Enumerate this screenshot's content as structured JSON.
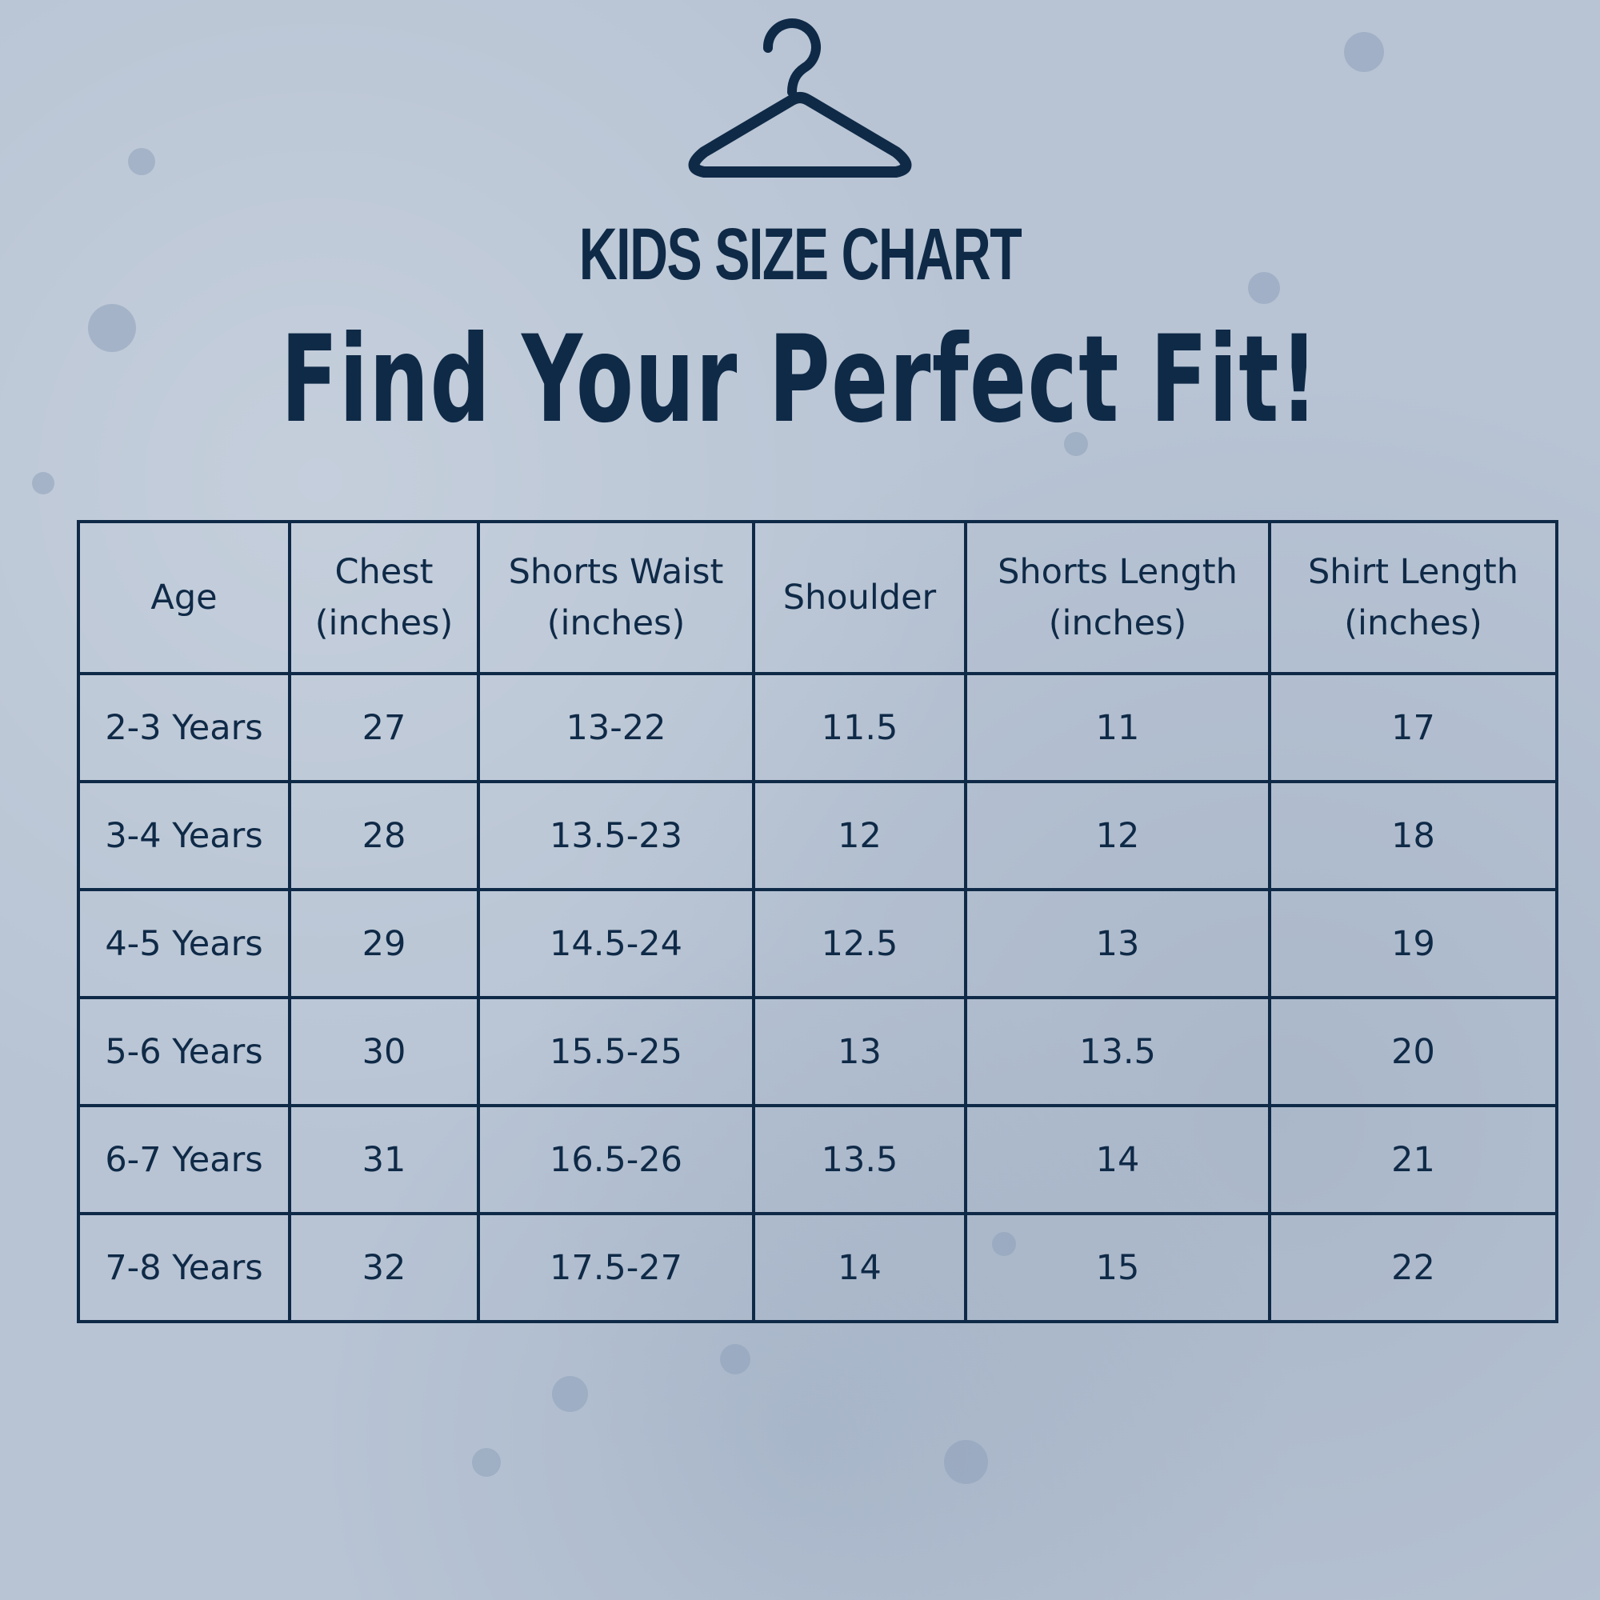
{
  "header": {
    "hanger_icon": "hanger-icon",
    "subtitle": "KIDS SIZE CHART",
    "title": "Find Your Perfect Fit!"
  },
  "colors": {
    "text": "#0f2a47",
    "background": "#b8c4d4"
  },
  "table": {
    "headers": [
      [
        "Age",
        ""
      ],
      [
        "Chest",
        "(inches)"
      ],
      [
        "Shorts Waist",
        "(inches)"
      ],
      [
        "Shoulder",
        ""
      ],
      [
        "Shorts Length",
        "(inches)"
      ],
      [
        "Shirt Length",
        "(inches)"
      ]
    ],
    "rows": [
      [
        "2-3 Years",
        "27",
        "13-22",
        "11.5",
        "11",
        "17"
      ],
      [
        "3-4 Years",
        "28",
        "13.5-23",
        "12",
        "12",
        "18"
      ],
      [
        "4-5 Years",
        "29",
        "14.5-24",
        "12.5",
        "13",
        "19"
      ],
      [
        "5-6 Years",
        "30",
        "15.5-25",
        "13",
        "13.5",
        "20"
      ],
      [
        "6-7 Years",
        "31",
        "16.5-26",
        "13.5",
        "14",
        "21"
      ],
      [
        "7-8 Years",
        "32",
        "17.5-27",
        "14",
        "15",
        "22"
      ]
    ]
  }
}
